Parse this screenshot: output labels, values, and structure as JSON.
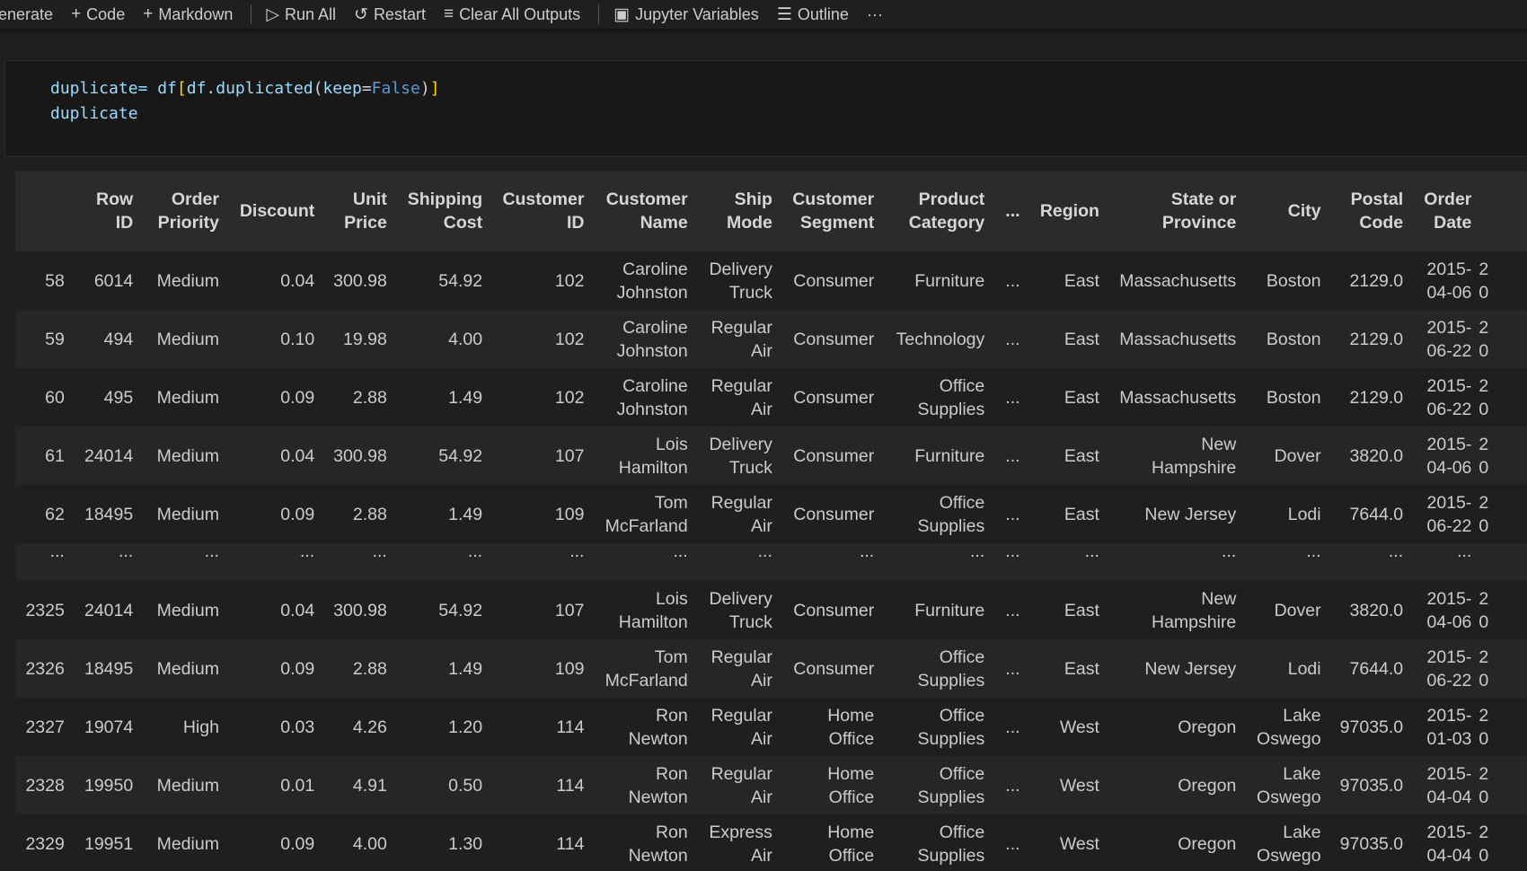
{
  "toolbar": {
    "items": [
      {
        "label": "enerate",
        "icon": ""
      },
      {
        "label": "Code",
        "icon": "plus-icon"
      },
      {
        "label": "Markdown",
        "icon": "plus-icon"
      },
      {
        "label": "Run All",
        "icon": "run-all-icon"
      },
      {
        "label": "Restart",
        "icon": "restart-icon"
      },
      {
        "label": "Clear All Outputs",
        "icon": "clear-outputs-icon"
      },
      {
        "label": "Jupyter Variables",
        "icon": "variables-icon"
      },
      {
        "label": "Outline",
        "icon": "outline-icon"
      }
    ],
    "more": "···"
  },
  "cell": {
    "line1": {
      "a": "duplicate= df",
      "b": "[",
      "c": "df.duplicated",
      "d": "(",
      "e": "keep",
      "f": "=",
      "g": "False",
      "h": ")",
      "i": "]"
    },
    "line2": "duplicate"
  },
  "table": {
    "columns": [
      "",
      "Row\nID",
      "Order\nPriority",
      "Discount",
      "Unit\nPrice",
      "Shipping\nCost",
      "Customer\nID",
      "Customer\nName",
      "Ship\nMode",
      "Customer\nSegment",
      "Product\nCategory",
      "...",
      "Region",
      "State or\nProvince",
      "City",
      "Postal\nCode",
      "Order\nDate",
      ""
    ],
    "rows": [
      [
        "58",
        "6014",
        "Medium",
        "0.04",
        "300.98",
        "54.92",
        "102",
        "Caroline\nJohnston",
        "Delivery\nTruck",
        "Consumer",
        "Furniture",
        "...",
        "East",
        "Massachusetts",
        "Boston",
        "2129.0",
        "2015-\n04-06",
        "2\n0"
      ],
      [
        "59",
        "494",
        "Medium",
        "0.10",
        "19.98",
        "4.00",
        "102",
        "Caroline\nJohnston",
        "Regular\nAir",
        "Consumer",
        "Technology",
        "...",
        "East",
        "Massachusetts",
        "Boston",
        "2129.0",
        "2015-\n06-22",
        "2\n0"
      ],
      [
        "60",
        "495",
        "Medium",
        "0.09",
        "2.88",
        "1.49",
        "102",
        "Caroline\nJohnston",
        "Regular\nAir",
        "Consumer",
        "Office\nSupplies",
        "...",
        "East",
        "Massachusetts",
        "Boston",
        "2129.0",
        "2015-\n06-22",
        "2\n0"
      ],
      [
        "61",
        "24014",
        "Medium",
        "0.04",
        "300.98",
        "54.92",
        "107",
        "Lois\nHamilton",
        "Delivery\nTruck",
        "Consumer",
        "Furniture",
        "...",
        "East",
        "New\nHampshire",
        "Dover",
        "3820.0",
        "2015-\n04-06",
        "2\n0"
      ],
      [
        "62",
        "18495",
        "Medium",
        "0.09",
        "2.88",
        "1.49",
        "109",
        "Tom\nMcFarland",
        "Regular\nAir",
        "Consumer",
        "Office\nSupplies",
        "...",
        "East",
        "New Jersey",
        "Lodi",
        "7644.0",
        "2015-\n06-22",
        "2\n0"
      ],
      [
        "...",
        "...",
        "...",
        "...",
        "...",
        "...",
        "...",
        "...",
        "...",
        "...",
        "...",
        "...",
        "...",
        "...",
        "...",
        "...",
        "...",
        ""
      ],
      [
        "2325",
        "24014",
        "Medium",
        "0.04",
        "300.98",
        "54.92",
        "107",
        "Lois\nHamilton",
        "Delivery\nTruck",
        "Consumer",
        "Furniture",
        "...",
        "East",
        "New\nHampshire",
        "Dover",
        "3820.0",
        "2015-\n04-06",
        "2\n0"
      ],
      [
        "2326",
        "18495",
        "Medium",
        "0.09",
        "2.88",
        "1.49",
        "109",
        "Tom\nMcFarland",
        "Regular\nAir",
        "Consumer",
        "Office\nSupplies",
        "...",
        "East",
        "New Jersey",
        "Lodi",
        "7644.0",
        "2015-\n06-22",
        "2\n0"
      ],
      [
        "2327",
        "19074",
        "High",
        "0.03",
        "4.26",
        "1.20",
        "114",
        "Ron\nNewton",
        "Regular\nAir",
        "Home\nOffice",
        "Office\nSupplies",
        "...",
        "West",
        "Oregon",
        "Lake\nOswego",
        "97035.0",
        "2015-\n01-03",
        "2\n0"
      ],
      [
        "2328",
        "19950",
        "Medium",
        "0.01",
        "4.91",
        "0.50",
        "114",
        "Ron\nNewton",
        "Regular\nAir",
        "Home\nOffice",
        "Office\nSupplies",
        "...",
        "West",
        "Oregon",
        "Lake\nOswego",
        "97035.0",
        "2015-\n04-04",
        "2\n0"
      ],
      [
        "2329",
        "19951",
        "Medium",
        "0.09",
        "4.00",
        "1.30",
        "114",
        "Ron\nNewton",
        "Express\nAir",
        "Home\nOffice",
        "Office\nSupplies",
        "...",
        "West",
        "Oregon",
        "Lake\nOswego",
        "97035.0",
        "2015-\n04-04",
        "2\n0"
      ]
    ]
  }
}
